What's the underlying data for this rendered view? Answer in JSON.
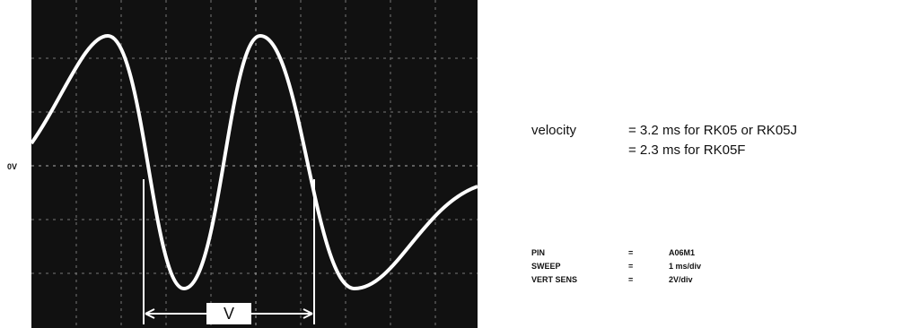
{
  "scope": {
    "ground_label": "0V",
    "marker_label": "V"
  },
  "velocity": {
    "label": "velocity",
    "lines": [
      "= 3.2 ms for RK05 or RK05J",
      "= 2.3 ms for RK05F"
    ]
  },
  "settings": {
    "rows": [
      [
        "PIN",
        "=",
        "A06M1"
      ],
      [
        "SWEEP",
        "=",
        "1 ms/div"
      ],
      [
        "VERT SENS",
        "=",
        "2V/div"
      ]
    ]
  }
}
